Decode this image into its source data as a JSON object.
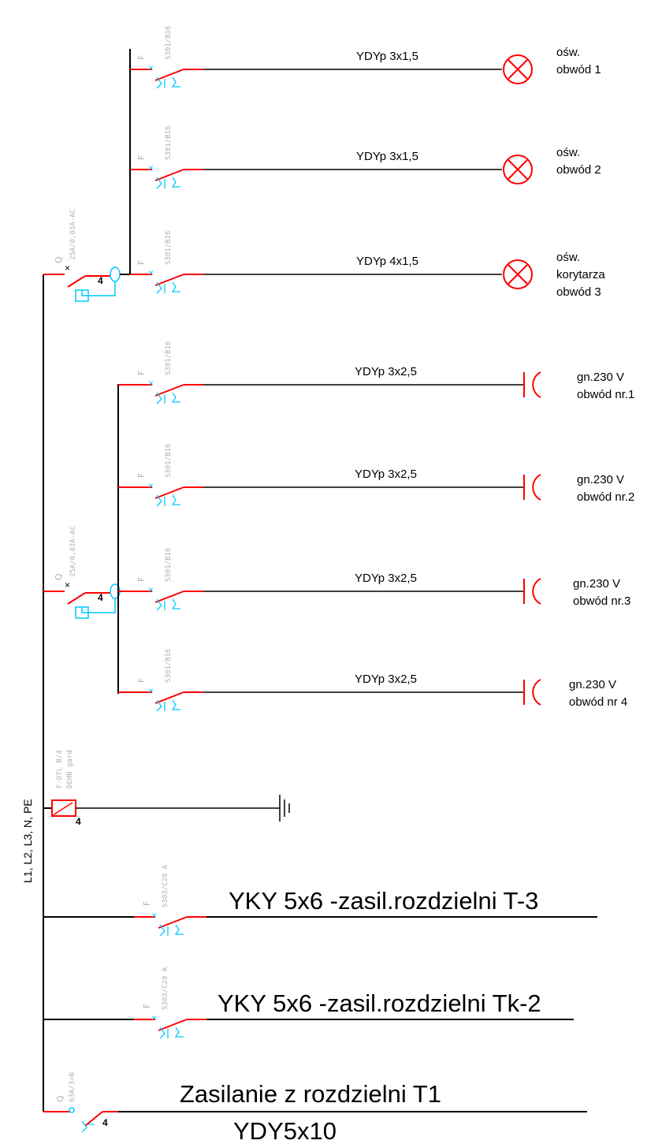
{
  "colors": {
    "wire": "#000000",
    "device": "#ff0000",
    "terminal": "#00c8ff",
    "tag": "#b0b0b0"
  },
  "bus_label": "L1, L2, L3, N, PE",
  "rcd_groups": [
    {
      "tag": "Q",
      "rating": "25A/0,03A-AC",
      "poles": "4"
    },
    {
      "tag": "Q",
      "rating": "25A/0,03A-AC",
      "poles": "4"
    }
  ],
  "circuits": [
    {
      "breaker_tag": "F",
      "breaker_rating": "S301/B16",
      "cable": "YDYp 3x1,5",
      "load": "lamp-icon",
      "load_text": [
        "ośw.",
        "obwód 1"
      ]
    },
    {
      "breaker_tag": "F",
      "breaker_rating": "S301/B16",
      "cable": "YDYp 3x1,5",
      "load": "lamp-icon",
      "load_text": [
        "ośw.",
        "obwód 2"
      ]
    },
    {
      "breaker_tag": "F",
      "breaker_rating": "S301/B16",
      "cable": "YDYp 4x1,5",
      "load": "lamp-icon",
      "load_text": [
        "ośw.",
        "korytarza",
        "obwód 3"
      ]
    },
    {
      "breaker_tag": "F",
      "breaker_rating": "S301/B16",
      "cable": "YDYp 3x2,5",
      "load": "socket-icon",
      "load_text": [
        "gn.230 V",
        "obwód nr.1"
      ]
    },
    {
      "breaker_tag": "F",
      "breaker_rating": "S301/B16",
      "cable": "YDYp 3x2,5",
      "load": "socket-icon",
      "load_text": [
        "gn.230 V",
        "obwód nr.2"
      ]
    },
    {
      "breaker_tag": "F",
      "breaker_rating": "S301/B16",
      "cable": "YDYp 3x2,5",
      "load": "socket-icon",
      "load_text": [
        "gn.230 V",
        "obwód nr.3"
      ]
    },
    {
      "breaker_tag": "F",
      "breaker_rating": "S301/B16",
      "cable": "YDYp 3x2,5",
      "load": "socket-icon",
      "load_text": [
        "gn.230 V",
        "obwód nr 4"
      ]
    }
  ],
  "surge": {
    "line1": "F-DTL B/4",
    "line2": "DEHN gard",
    "poles": "4"
  },
  "feeders": [
    {
      "breaker_tag": "F",
      "breaker_rating": "S303/C20 A",
      "label": "YKY 5x6 -zasil.rozdzielni T-3"
    },
    {
      "breaker_tag": "F",
      "breaker_rating": "S303/C20 A",
      "label": "YKY 5x6 -zasil.rozdzielni Tk-2"
    }
  ],
  "main": {
    "tag": "Q",
    "rating": "63A/3+N",
    "poles": "4",
    "label": "Zasilanie z rozdzielni T1",
    "cable": "YDY5x10"
  }
}
